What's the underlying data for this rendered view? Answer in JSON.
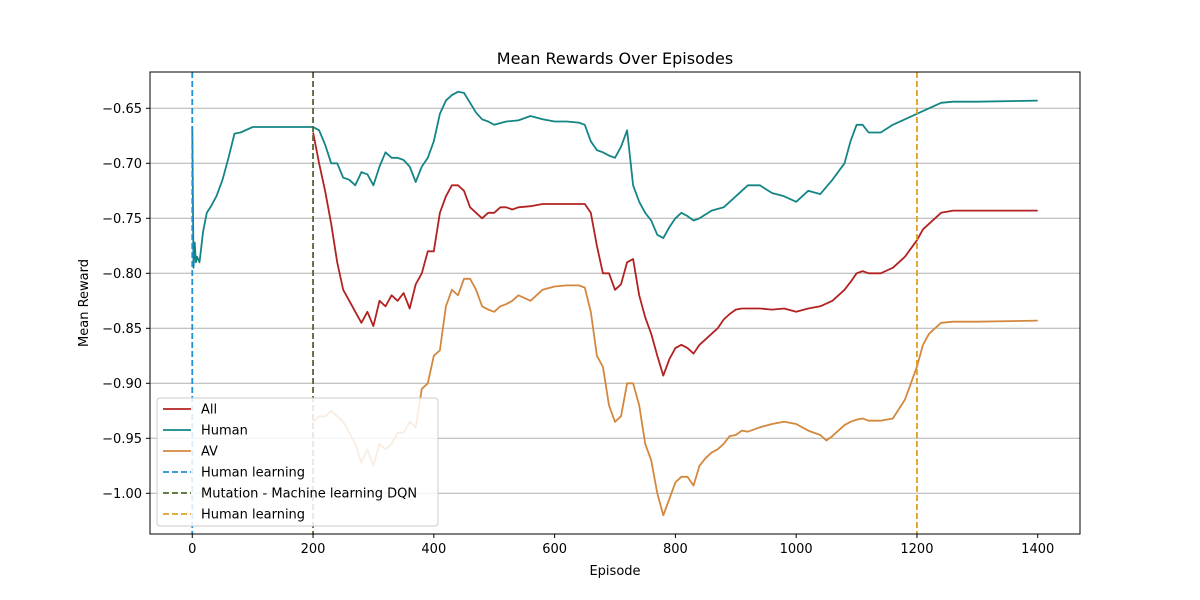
{
  "chart_data": {
    "type": "line",
    "title": "Mean Rewards Over Episodes",
    "xlabel": "Episode",
    "ylabel": "Mean Reward",
    "xlim": [
      -70,
      1470
    ],
    "ylim": [
      -1.037,
      -0.617
    ],
    "xticks": [
      0,
      200,
      400,
      600,
      800,
      1000,
      1200,
      1400
    ],
    "xtick_labels": [
      "0",
      "200",
      "400",
      "600",
      "800",
      "1000",
      "1200",
      "1400"
    ],
    "yticks": [
      -0.65,
      -0.7,
      -0.75,
      -0.8,
      -0.85,
      -0.9,
      -0.95,
      -1.0
    ],
    "ytick_labels": [
      "−0.65",
      "−0.70",
      "−0.75",
      "−0.80",
      "−0.85",
      "−0.90",
      "−0.95",
      "−1.00"
    ],
    "grid": "horizontal",
    "legend_position": "lower-left",
    "series": [
      {
        "name": "All",
        "color": "#b22222",
        "x": [
          200,
          210,
          220,
          230,
          240,
          250,
          260,
          270,
          280,
          290,
          300,
          310,
          320,
          330,
          340,
          350,
          360,
          370,
          380,
          390,
          400,
          410,
          420,
          430,
          440,
          450,
          460,
          470,
          480,
          490,
          500,
          510,
          520,
          530,
          540,
          560,
          580,
          600,
          620,
          640,
          650,
          660,
          670,
          680,
          690,
          700,
          710,
          720,
          730,
          740,
          750,
          760,
          770,
          780,
          790,
          800,
          810,
          820,
          830,
          840,
          850,
          860,
          870,
          880,
          890,
          900,
          910,
          920,
          940,
          960,
          980,
          1000,
          1020,
          1040,
          1060,
          1080,
          1090,
          1100,
          1110,
          1120,
          1140,
          1160,
          1180,
          1200,
          1210,
          1220,
          1240,
          1260,
          1300,
          1400
        ],
        "y": [
          -0.672,
          -0.7,
          -0.725,
          -0.755,
          -0.79,
          -0.815,
          -0.825,
          -0.835,
          -0.845,
          -0.835,
          -0.848,
          -0.825,
          -0.83,
          -0.82,
          -0.825,
          -0.818,
          -0.832,
          -0.81,
          -0.8,
          -0.78,
          -0.78,
          -0.745,
          -0.73,
          -0.72,
          -0.72,
          -0.725,
          -0.74,
          -0.745,
          -0.75,
          -0.745,
          -0.745,
          -0.74,
          -0.74,
          -0.742,
          -0.74,
          -0.739,
          -0.737,
          -0.737,
          -0.737,
          -0.737,
          -0.737,
          -0.745,
          -0.775,
          -0.8,
          -0.8,
          -0.815,
          -0.81,
          -0.79,
          -0.787,
          -0.82,
          -0.84,
          -0.855,
          -0.875,
          -0.893,
          -0.878,
          -0.868,
          -0.865,
          -0.868,
          -0.873,
          -0.865,
          -0.86,
          -0.855,
          -0.85,
          -0.842,
          -0.837,
          -0.833,
          -0.832,
          -0.832,
          -0.832,
          -0.833,
          -0.832,
          -0.835,
          -0.832,
          -0.83,
          -0.825,
          -0.815,
          -0.808,
          -0.8,
          -0.798,
          -0.8,
          -0.8,
          -0.795,
          -0.785,
          -0.77,
          -0.76,
          -0.755,
          -0.745,
          -0.743,
          -0.743,
          -0.743
        ]
      },
      {
        "name": "Human",
        "color": "#148585",
        "x": [
          0,
          2,
          4,
          6,
          8,
          12,
          18,
          24,
          30,
          40,
          50,
          60,
          70,
          80,
          100,
          150,
          200,
          210,
          220,
          230,
          240,
          250,
          260,
          270,
          280,
          290,
          300,
          310,
          320,
          330,
          340,
          350,
          360,
          370,
          380,
          390,
          400,
          410,
          420,
          430,
          440,
          450,
          460,
          470,
          480,
          490,
          500,
          520,
          540,
          560,
          580,
          600,
          620,
          640,
          650,
          660,
          670,
          680,
          690,
          700,
          710,
          720,
          730,
          740,
          750,
          760,
          770,
          780,
          790,
          800,
          810,
          820,
          830,
          840,
          860,
          880,
          900,
          920,
          940,
          960,
          980,
          1000,
          1020,
          1040,
          1060,
          1080,
          1090,
          1100,
          1110,
          1120,
          1140,
          1160,
          1180,
          1200,
          1220,
          1240,
          1260,
          1300,
          1400
        ],
        "y": [
          -0.667,
          -0.795,
          -0.772,
          -0.79,
          -0.785,
          -0.79,
          -0.762,
          -0.745,
          -0.74,
          -0.73,
          -0.715,
          -0.695,
          -0.673,
          -0.672,
          -0.667,
          -0.667,
          -0.667,
          -0.67,
          -0.683,
          -0.7,
          -0.7,
          -0.713,
          -0.715,
          -0.72,
          -0.708,
          -0.71,
          -0.72,
          -0.703,
          -0.69,
          -0.695,
          -0.695,
          -0.697,
          -0.703,
          -0.717,
          -0.703,
          -0.695,
          -0.68,
          -0.655,
          -0.643,
          -0.638,
          -0.635,
          -0.636,
          -0.645,
          -0.654,
          -0.66,
          -0.662,
          -0.665,
          -0.662,
          -0.661,
          -0.657,
          -0.66,
          -0.662,
          -0.662,
          -0.663,
          -0.665,
          -0.68,
          -0.688,
          -0.69,
          -0.693,
          -0.695,
          -0.685,
          -0.67,
          -0.72,
          -0.735,
          -0.745,
          -0.752,
          -0.765,
          -0.768,
          -0.758,
          -0.75,
          -0.745,
          -0.748,
          -0.752,
          -0.75,
          -0.743,
          -0.74,
          -0.73,
          -0.72,
          -0.72,
          -0.727,
          -0.73,
          -0.735,
          -0.725,
          -0.728,
          -0.715,
          -0.7,
          -0.68,
          -0.665,
          -0.665,
          -0.672,
          -0.672,
          -0.665,
          -0.66,
          -0.655,
          -0.65,
          -0.645,
          -0.644,
          -0.644,
          -0.643
        ]
      },
      {
        "name": "AV",
        "color": "#d4883e",
        "x": [
          200,
          210,
          220,
          230,
          240,
          250,
          260,
          270,
          280,
          290,
          300,
          310,
          320,
          330,
          340,
          350,
          360,
          370,
          380,
          390,
          400,
          410,
          420,
          430,
          440,
          450,
          460,
          470,
          480,
          490,
          500,
          510,
          520,
          530,
          540,
          560,
          580,
          600,
          620,
          640,
          650,
          660,
          670,
          680,
          690,
          700,
          710,
          720,
          730,
          740,
          750,
          760,
          770,
          780,
          790,
          800,
          810,
          820,
          830,
          840,
          850,
          860,
          870,
          880,
          890,
          900,
          910,
          920,
          940,
          960,
          980,
          1000,
          1020,
          1040,
          1050,
          1060,
          1080,
          1090,
          1100,
          1110,
          1120,
          1140,
          1160,
          1180,
          1200,
          1210,
          1220,
          1240,
          1260,
          1300,
          1400
        ],
        "y": [
          -0.935,
          -0.93,
          -0.93,
          -0.925,
          -0.93,
          -0.935,
          -0.945,
          -0.955,
          -0.972,
          -0.96,
          -0.975,
          -0.955,
          -0.96,
          -0.955,
          -0.945,
          -0.945,
          -0.935,
          -0.94,
          -0.905,
          -0.9,
          -0.875,
          -0.87,
          -0.83,
          -0.815,
          -0.82,
          -0.805,
          -0.805,
          -0.815,
          -0.83,
          -0.833,
          -0.835,
          -0.83,
          -0.828,
          -0.825,
          -0.82,
          -0.825,
          -0.815,
          -0.812,
          -0.811,
          -0.811,
          -0.813,
          -0.835,
          -0.875,
          -0.885,
          -0.92,
          -0.935,
          -0.93,
          -0.9,
          -0.9,
          -0.92,
          -0.955,
          -0.97,
          -1.0,
          -1.02,
          -1.005,
          -0.99,
          -0.985,
          -0.985,
          -0.993,
          -0.975,
          -0.968,
          -0.963,
          -0.96,
          -0.955,
          -0.948,
          -0.947,
          -0.943,
          -0.944,
          -0.94,
          -0.937,
          -0.935,
          -0.937,
          -0.943,
          -0.947,
          -0.952,
          -0.948,
          -0.938,
          -0.935,
          -0.933,
          -0.932,
          -0.934,
          -0.934,
          -0.932,
          -0.915,
          -0.885,
          -0.865,
          -0.855,
          -0.845,
          -0.844,
          -0.844,
          -0.843
        ]
      }
    ],
    "vlines": [
      {
        "name": "Human learning",
        "x": 0,
        "color": "#1f8fd6"
      },
      {
        "name": "Mutation - Machine learning DQN",
        "x": 200,
        "color": "#4f6a2f"
      },
      {
        "name": "Human learning",
        "x": 1200,
        "color": "#e0a020"
      }
    ]
  }
}
